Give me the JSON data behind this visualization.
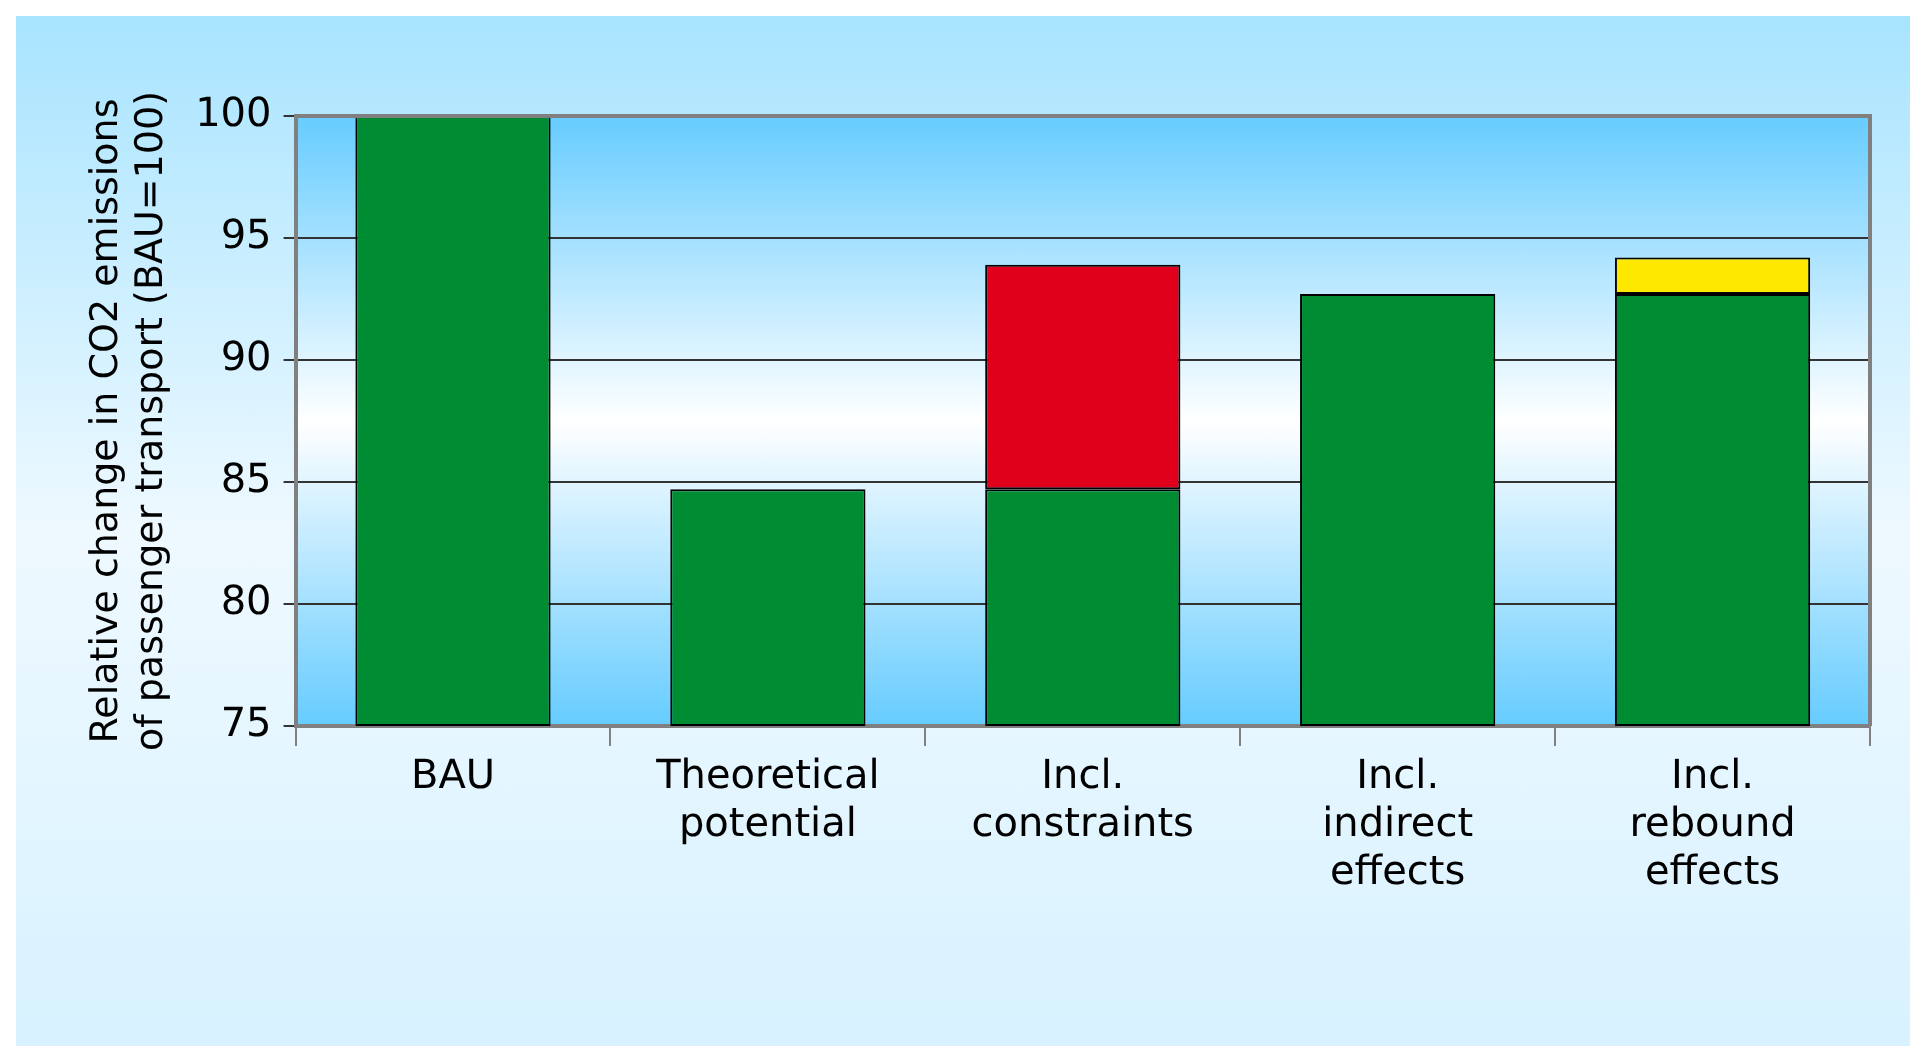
{
  "chart_data": {
    "type": "bar",
    "ylabel": "Relative change in CO2 emissions of passenger transport (BAU=100)",
    "categories": [
      "BAU",
      "Theoretical potential",
      "Incl. constraints",
      "Incl. indirect effects",
      "Incl. rebound effects"
    ],
    "series": [
      {
        "color": "#008c32",
        "values": [
          25,
          9.7,
          9.7,
          17.7,
          17.7
        ],
        "base": [
          75,
          75,
          75,
          75,
          75
        ]
      },
      {
        "color": "#e0001b",
        "values": [
          null,
          null,
          9.2,
          null,
          null
        ],
        "base": [
          null,
          null,
          84.7,
          null,
          null
        ]
      },
      {
        "color": "#ffe800",
        "values": [
          null,
          null,
          null,
          null,
          1.5
        ],
        "base": [
          null,
          null,
          null,
          null,
          92.7
        ]
      }
    ],
    "ylim": [
      75,
      100
    ],
    "yticks": [
      75,
      80,
      85,
      90,
      95,
      100
    ],
    "grid": "y",
    "legend": false
  }
}
